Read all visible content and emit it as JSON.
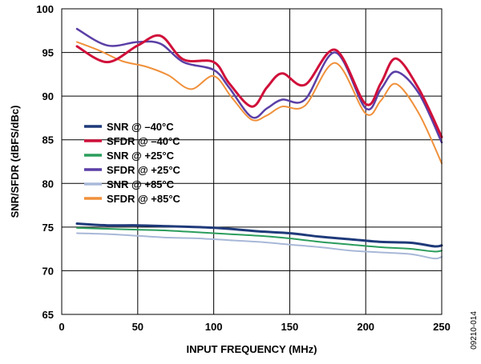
{
  "chart_data": {
    "type": "line",
    "xlabel": "INPUT FREQUENCY (MHz)",
    "ylabel": "SNR/SFDR (dBFS/dBc)",
    "xlim": [
      0,
      250
    ],
    "ylim": [
      65,
      100
    ],
    "x_ticks": [
      0,
      50,
      100,
      150,
      200,
      250
    ],
    "y_ticks": [
      65,
      70,
      75,
      80,
      85,
      90,
      95,
      100
    ],
    "grid": true,
    "legend_position": "center-left",
    "figure_id": "09210-014",
    "series": [
      {
        "name": "SNR @ –40°C",
        "color": "#1f3a7a",
        "width": 3,
        "x": [
          10,
          30,
          50,
          70,
          90,
          110,
          130,
          150,
          170,
          190,
          210,
          230,
          245,
          250
        ],
        "y": [
          75.4,
          75.2,
          75.2,
          75.1,
          75.0,
          74.8,
          74.5,
          74.3,
          73.9,
          73.6,
          73.3,
          73.2,
          72.8,
          72.9
        ]
      },
      {
        "name": "SFDR @ –40°C",
        "color": "#d0103a",
        "width": 3,
        "x": [
          10,
          30,
          50,
          65,
          80,
          100,
          110,
          125,
          135,
          145,
          160,
          180,
          200,
          210,
          220,
          235,
          250
        ],
        "y": [
          95.7,
          93.9,
          95.8,
          96.9,
          94.2,
          93.9,
          91.5,
          88.8,
          91.0,
          92.6,
          91.3,
          95.3,
          89.1,
          91.5,
          94.3,
          90.8,
          85.3
        ]
      },
      {
        "name": "SNR @ +25°C",
        "color": "#2a9d5c",
        "width": 2,
        "x": [
          10,
          30,
          50,
          70,
          90,
          110,
          130,
          150,
          170,
          190,
          210,
          230,
          245,
          250
        ],
        "y": [
          74.9,
          74.8,
          74.7,
          74.6,
          74.4,
          74.2,
          74.0,
          73.7,
          73.3,
          73.0,
          72.7,
          72.5,
          72.2,
          72.3
        ]
      },
      {
        "name": "SFDR @ +25°C",
        "color": "#5b3fa6",
        "width": 2.5,
        "x": [
          10,
          30,
          50,
          65,
          80,
          100,
          110,
          125,
          135,
          145,
          160,
          180,
          200,
          210,
          220,
          235,
          250
        ],
        "y": [
          97.7,
          95.8,
          96.2,
          96.0,
          93.9,
          93.0,
          91.0,
          87.6,
          88.6,
          89.6,
          89.6,
          95.0,
          88.6,
          90.8,
          92.8,
          90.3,
          84.7
        ]
      },
      {
        "name": "SNR @ +85°C",
        "color": "#a8b8d8",
        "width": 2,
        "x": [
          10,
          30,
          50,
          70,
          90,
          110,
          130,
          150,
          170,
          190,
          210,
          230,
          245,
          250
        ],
        "y": [
          74.3,
          74.2,
          74.0,
          73.8,
          73.7,
          73.5,
          73.3,
          73.0,
          72.7,
          72.3,
          72.1,
          71.9,
          71.4,
          71.6
        ]
      },
      {
        "name": "SFDR @ +85°C",
        "color": "#f0903a",
        "width": 2,
        "x": [
          10,
          25,
          40,
          55,
          70,
          85,
          100,
          112,
          125,
          135,
          145,
          160,
          180,
          200,
          210,
          220,
          235,
          250
        ],
        "y": [
          96.2,
          95.2,
          94.0,
          93.4,
          92.4,
          90.8,
          92.3,
          89.8,
          87.3,
          87.8,
          88.8,
          88.9,
          93.8,
          88.0,
          89.5,
          91.4,
          88.0,
          82.3
        ]
      }
    ]
  }
}
